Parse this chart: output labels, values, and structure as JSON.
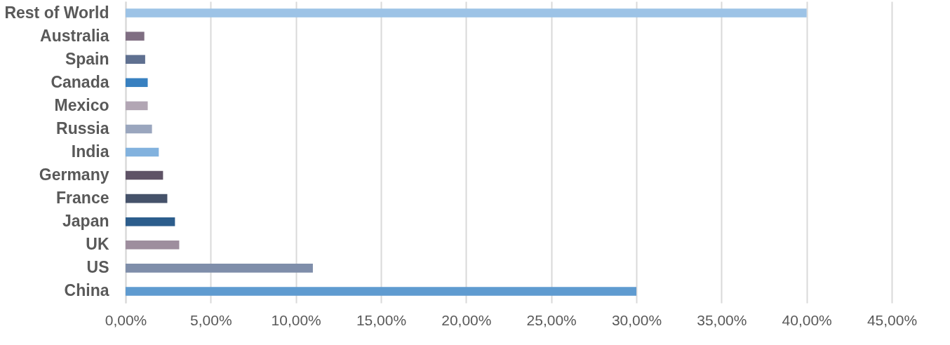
{
  "chart_data": {
    "type": "bar",
    "orientation": "horizontal",
    "categories": [
      "Rest of World",
      "Australia",
      "Spain",
      "Canada",
      "Mexico",
      "Russia",
      "India",
      "Germany",
      "France",
      "Japan",
      "UK",
      "US",
      "China"
    ],
    "values": [
      40,
      1.1,
      1.15,
      1.3,
      1.3,
      1.55,
      1.95,
      2.2,
      2.45,
      2.9,
      3.15,
      11,
      30
    ],
    "colors": [
      "#9dc3e6",
      "#7f6e82",
      "#5f7090",
      "#3880c0",
      "#b2a6b4",
      "#9aa6be",
      "#82b2de",
      "#5f5366",
      "#45526a",
      "#2c5d8c",
      "#9e8e9e",
      "#7f8eaa",
      "#5f9bd0"
    ],
    "xlim": [
      0,
      45
    ],
    "xticks": [
      {
        "value": 0,
        "label": "0,00%"
      },
      {
        "value": 5,
        "label": "5,00%"
      },
      {
        "value": 10,
        "label": "10,00%"
      },
      {
        "value": 15,
        "label": "15,00%"
      },
      {
        "value": 20,
        "label": "20,00%"
      },
      {
        "value": 25,
        "label": "25,00%"
      },
      {
        "value": 30,
        "label": "30,00%"
      },
      {
        "value": 35,
        "label": "35,00%"
      },
      {
        "value": 40,
        "label": "40,00%"
      },
      {
        "value": 45,
        "label": "45,00%"
      }
    ],
    "grid": "x"
  }
}
